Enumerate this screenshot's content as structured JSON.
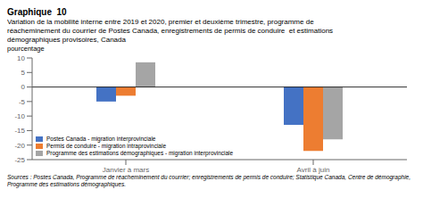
{
  "chart_data": {
    "type": "bar",
    "title": "Graphique  10",
    "subtitle": "Variation de la mobilité interne entre 2019 et 2020, premier et deuxième trimestre, programme de\nréacheminement du courrier de Postes Canada, enregistrements de permis de conduire  et estimations\ndémographiques provisoires, Canada",
    "ylabel": "pourcentage",
    "categories": [
      "Janvier à mars",
      "Avril à juin"
    ],
    "series": [
      {
        "name": "Postes Canada - migration interprovinciale",
        "color": "#4472C4",
        "values": [
          -5.0,
          -13.0
        ]
      },
      {
        "name": "Permis de conduire - migration intraprovinciale",
        "color": "#ED7D31",
        "values": [
          -3.0,
          -22.0
        ]
      },
      {
        "name": "Programme des estimations démographiques - migration interprovinciale",
        "color": "#A5A5A5",
        "values": [
          8.5,
          -18.0
        ]
      }
    ],
    "ylim": [
      -25,
      10
    ],
    "yticks": [
      10,
      5,
      0,
      -5,
      -10,
      -15,
      -20,
      -25
    ],
    "grid": false,
    "legend": "lower left",
    "annotations": [
      "Sources : Postes Canada, Programme de réacheminement du courrier; enregistrements de permis de conduire; Statistique Canada, Centre de démographie,\nProgramme des estimations démographiques."
    ]
  }
}
